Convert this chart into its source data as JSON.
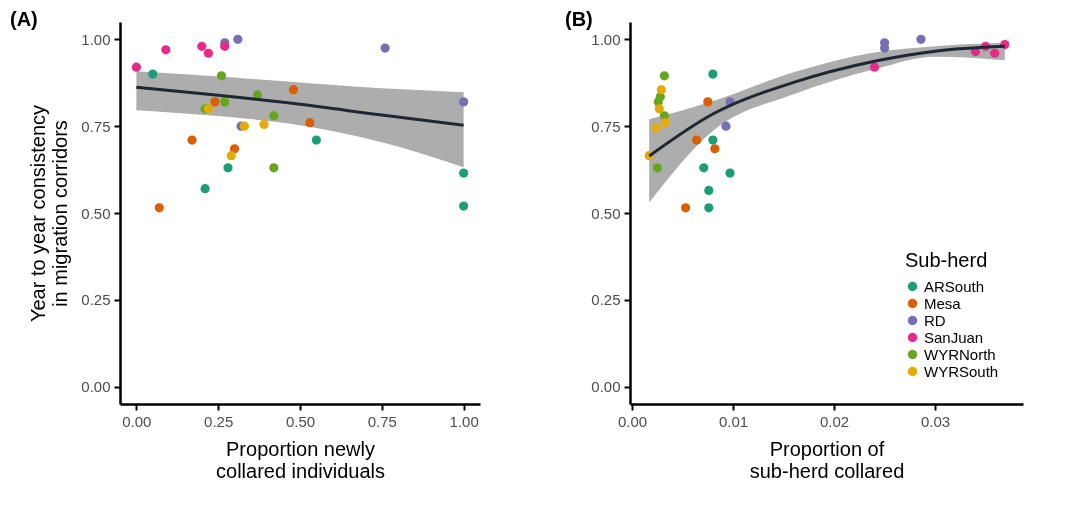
{
  "chart_data": [
    {
      "type": "scatter",
      "title": "(A)",
      "xlabel": "Proportion newly\ncollared individuals",
      "ylabel": "Year to year consistency\nin migration corridors",
      "xlim": [
        -0.05,
        1.05
      ],
      "ylim": [
        -0.05,
        1.05
      ],
      "xticks": [
        {
          "value": 0,
          "label": "0.00"
        },
        {
          "value": 0.25,
          "label": "0.25"
        },
        {
          "value": 0.5,
          "label": "0.50"
        },
        {
          "value": 0.75,
          "label": "0.75"
        },
        {
          "value": 1,
          "label": "1.00"
        }
      ],
      "yticks": [
        {
          "value": 0,
          "label": "0.00"
        },
        {
          "value": 0.25,
          "label": "0.25"
        },
        {
          "value": 0.5,
          "label": "0.50"
        },
        {
          "value": 0.75,
          "label": "0.75"
        },
        {
          "value": 1,
          "label": "1.00"
        }
      ],
      "grid": false,
      "marker": "circle",
      "series": [
        {
          "color": "#1b9e77",
          "x": [
            0.05,
            0.55,
            0.28,
            0.21,
            1.0,
            1.0
          ],
          "values": [
            0.9,
            0.71,
            0.63,
            0.57,
            0.615,
            0.52
          ]
        },
        {
          "color": "#d95f02",
          "x": [
            0.07,
            0.17,
            0.3,
            0.24,
            0.48,
            0.53
          ],
          "values": [
            0.515,
            0.71,
            0.685,
            0.82,
            0.855,
            0.76
          ]
        },
        {
          "color": "#7570b3",
          "x": [
            0.27,
            0.31,
            0.76,
            1.0,
            0.32
          ],
          "values": [
            0.99,
            1.0,
            0.975,
            0.82,
            0.75
          ]
        },
        {
          "color": "#e7298a",
          "x": [
            0.0,
            0.09,
            0.2,
            0.22,
            0.27
          ],
          "values": [
            0.92,
            0.97,
            0.98,
            0.96,
            0.98
          ]
        },
        {
          "color": "#66a61e",
          "x": [
            0.26,
            0.21,
            0.27,
            0.37,
            0.42,
            0.42
          ],
          "values": [
            0.895,
            0.8,
            0.82,
            0.84,
            0.78,
            0.63
          ]
        },
        {
          "color": "#e6ab02",
          "x": [
            0.22,
            0.33,
            0.39,
            0.29
          ],
          "values": [
            0.8,
            0.75,
            0.755,
            0.665
          ]
        },
        {
          "type": "line",
          "marker": "none",
          "color": "#1c2833",
          "x": [
            0,
            0.25,
            0.5,
            0.75,
            1
          ],
          "values": [
            0.862,
            0.839,
            0.813,
            0.782,
            0.753
          ],
          "lower": [
            0.796,
            0.779,
            0.753,
            0.704,
            0.632
          ],
          "upper": [
            0.908,
            0.893,
            0.876,
            0.859,
            0.848
          ]
        }
      ]
    },
    {
      "type": "scatter",
      "title": "(B)",
      "xlabel": "Proportion of\nsub-herd collared",
      "legend_title": "Sub-herd",
      "xlim": [
        -0.0002,
        0.0387
      ],
      "ylim": [
        -0.05,
        1.05
      ],
      "xticks": [
        {
          "value": 0,
          "label": "0.00"
        },
        {
          "value": 0.01,
          "label": "0.01"
        },
        {
          "value": 0.02,
          "label": "0.02"
        },
        {
          "value": 0.03,
          "label": "0.03"
        }
      ],
      "yticks": [
        {
          "value": 0,
          "label": "0.00"
        },
        {
          "value": 0.25,
          "label": "0.25"
        },
        {
          "value": 0.5,
          "label": "0.50"
        },
        {
          "value": 0.75,
          "label": "0.75"
        },
        {
          "value": 1,
          "label": "1.00"
        }
      ],
      "grid": false,
      "legend": "bottom right",
      "marker": "circle",
      "series": [
        {
          "name": "ARSouth",
          "color": "#1b9e77",
          "x": [
            0.008,
            0.008,
            0.0071,
            0.0097,
            0.0076,
            0.0076
          ],
          "values": [
            0.9,
            0.71,
            0.63,
            0.615,
            0.565,
            0.515
          ]
        },
        {
          "name": "Mesa",
          "color": "#d95f02",
          "x": [
            0.0075,
            0.0064,
            0.0082,
            0.0053
          ],
          "values": [
            0.82,
            0.71,
            0.685,
            0.515
          ]
        },
        {
          "name": "RD",
          "color": "#7570b3",
          "x": [
            0.0097,
            0.0093,
            0.025,
            0.025,
            0.0286
          ],
          "values": [
            0.82,
            0.75,
            0.99,
            0.975,
            1.0
          ]
        },
        {
          "name": "SanJuan",
          "color": "#e7298a",
          "x": [
            0.024,
            0.034,
            0.035,
            0.0359,
            0.0369
          ],
          "values": [
            0.92,
            0.965,
            0.98,
            0.96,
            0.985
          ]
        },
        {
          "name": "WYRNorth",
          "color": "#66a61e",
          "x": [
            0.0025,
            0.0032,
            0.0026,
            0.0028,
            0.0032
          ],
          "values": [
            0.63,
            0.78,
            0.82,
            0.835,
            0.895
          ]
        },
        {
          "name": "WYRSouth",
          "color": "#e6ab02",
          "x": [
            0.0017,
            0.0024,
            0.0033,
            0.0027,
            0.0029
          ],
          "values": [
            0.665,
            0.745,
            0.76,
            0.8,
            0.855
          ]
        },
        {
          "type": "line",
          "marker": "none",
          "color": "#1c2833",
          "x": [
            0.0017,
            0.008,
            0.016,
            0.024,
            0.03,
            0.0369
          ],
          "values": [
            0.664,
            0.785,
            0.876,
            0.937,
            0.966,
            0.98
          ],
          "lower": [
            0.53,
            0.736,
            0.842,
            0.914,
            0.95,
            0.94
          ],
          "upper": [
            0.77,
            0.822,
            0.905,
            0.962,
            0.98,
            0.99
          ]
        }
      ]
    }
  ]
}
